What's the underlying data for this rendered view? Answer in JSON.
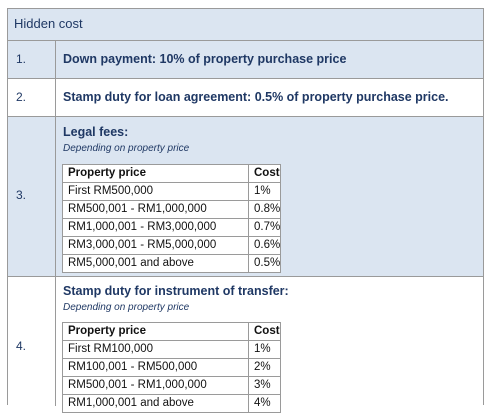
{
  "table": {
    "header": "Hidden cost",
    "rows": [
      {
        "number": "1.",
        "text": "Down payment: 10% of property purchase price"
      },
      {
        "number": "2.",
        "text": "Stamp duty for loan agreement: 0.5% of property purchase price."
      }
    ],
    "legal_fees": {
      "number": "3.",
      "title": "Legal fees:",
      "note": "Depending on property price",
      "columns": [
        "Property price",
        "Cost"
      ],
      "rows": [
        [
          "First RM500,000",
          "1%"
        ],
        [
          "RM500,001 - RM1,000,000",
          "0.8%"
        ],
        [
          "RM1,000,001 - RM3,000,000",
          "0.7%"
        ],
        [
          "RM3,000,001 - RM5,000,000",
          "0.6%"
        ],
        [
          "RM5,000,001 and above",
          "0.5%"
        ]
      ]
    },
    "stamp_duty_transfer": {
      "number": "4.",
      "title": "Stamp duty for instrument of transfer:",
      "note": "Depending on property price",
      "columns": [
        "Property price",
        "Cost"
      ],
      "rows": [
        [
          "First RM100,000",
          "1%"
        ],
        [
          "RM100,001 - RM500,000",
          "2%"
        ],
        [
          "RM500,001 - RM1,000,000",
          "3%"
        ],
        [
          "RM1,000,001 and above",
          "4%"
        ]
      ]
    }
  }
}
